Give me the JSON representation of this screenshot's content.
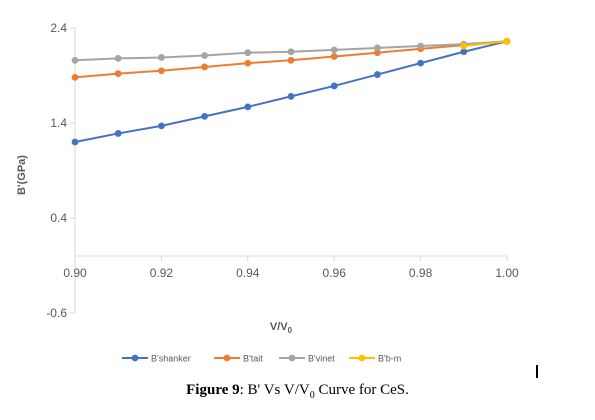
{
  "chart_data": {
    "type": "line",
    "xlabel": "V/V",
    "xlabel_sub": "0",
    "ylabel": "B'(GPa)",
    "xlim": [
      0.9,
      1.0
    ],
    "ylim": [
      -0.6,
      2.4
    ],
    "x_ticks": [
      "0.90",
      "0.92",
      "0.94",
      "0.96",
      "0.98",
      "1.00"
    ],
    "y_ticks": [
      "2.4",
      "1.4",
      "0.4",
      "-0.6"
    ],
    "y_tick_values": [
      2.4,
      1.4,
      0.4,
      -0.6
    ],
    "x_tick_values": [
      0.9,
      0.92,
      0.94,
      0.96,
      0.98,
      1.0
    ],
    "grid": false,
    "legend_position": "bottom",
    "series": [
      {
        "name": "B'shanker",
        "color": "#4472C4",
        "x": [
          0.9,
          0.91,
          0.92,
          0.93,
          0.94,
          0.95,
          0.96,
          0.97,
          0.98,
          0.99,
          1.0
        ],
        "values": [
          1.2,
          1.29,
          1.37,
          1.47,
          1.57,
          1.68,
          1.79,
          1.91,
          2.03,
          2.15,
          2.26
        ]
      },
      {
        "name": "B'tait",
        "color": "#ED7D31",
        "x": [
          0.9,
          0.91,
          0.92,
          0.93,
          0.94,
          0.95,
          0.96,
          0.97,
          0.98,
          0.99,
          1.0
        ],
        "values": [
          1.88,
          1.92,
          1.95,
          1.99,
          2.03,
          2.06,
          2.1,
          2.14,
          2.18,
          2.22,
          2.26
        ]
      },
      {
        "name": "B'vinet",
        "color": "#A5A5A5",
        "x": [
          0.9,
          0.91,
          0.92,
          0.93,
          0.94,
          0.95,
          0.96,
          0.97,
          0.98,
          0.99,
          1.0
        ],
        "values": [
          2.06,
          2.08,
          2.09,
          2.11,
          2.14,
          2.15,
          2.17,
          2.19,
          2.21,
          2.23,
          2.26
        ]
      },
      {
        "name": "B'b-m",
        "color": "#FFC000",
        "x": [
          0.99,
          1.0
        ],
        "values": [
          2.21,
          2.26
        ]
      }
    ]
  },
  "caption": {
    "label": "Figure 9",
    "text": ": B' Vs V/V",
    "sub": "0",
    "rest": " Curve   for CeS."
  }
}
